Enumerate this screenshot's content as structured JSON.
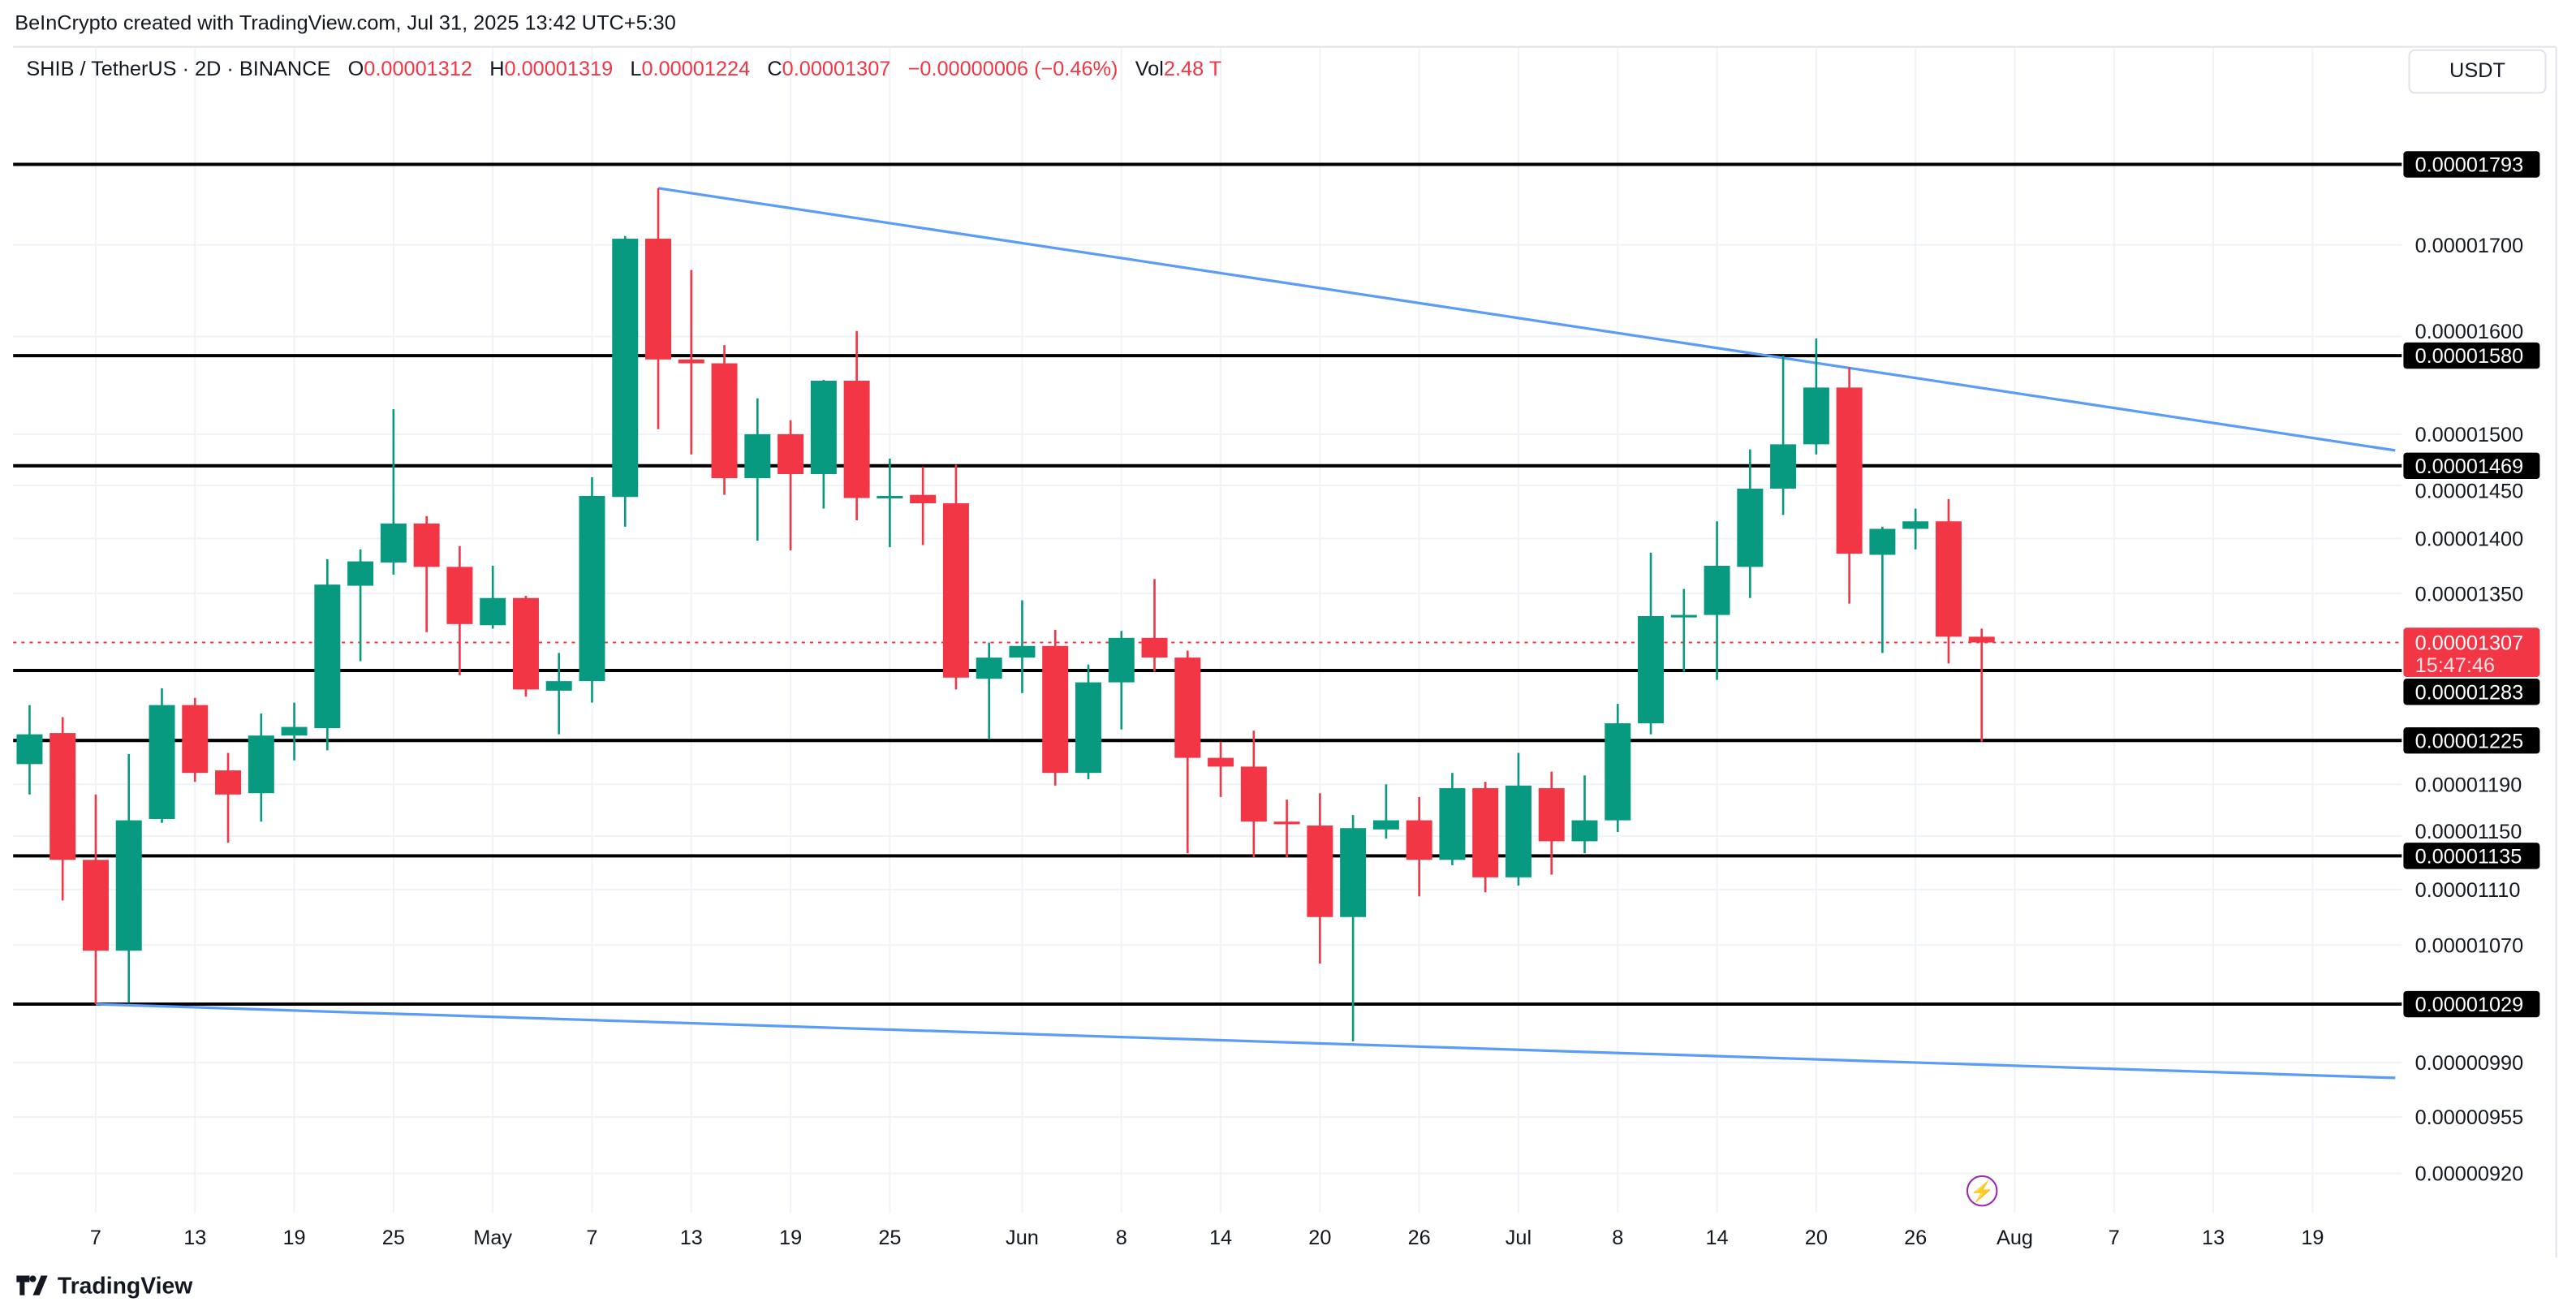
{
  "attribution": "BeInCrypto created with TradingView.com, Jul 31, 2025 13:42 UTC+5:30",
  "legend": {
    "symbol": "SHIB / TetherUS · 2D · BINANCE",
    "o_label": "O",
    "o": "0.00001312",
    "h_label": "H",
    "h": "0.00001319",
    "l_label": "L",
    "l": "0.00001224",
    "c_label": "C",
    "c": "0.00001307",
    "change": "−0.00000006 (−0.46%)",
    "vol_label": "Vol",
    "vol": "2.48 T"
  },
  "currency_button": "USDT",
  "footer_logo": "TradingView",
  "colors": {
    "up": "#089981",
    "down": "#F23645",
    "trendline": "#5B9CF6",
    "level": "#000000",
    "grid": "#f0f3fa",
    "replay_icon": "#9C27B0"
  },
  "icons": {
    "replay": "lightning-bolt-icon",
    "logo": "tradingview-logo-icon"
  },
  "chart_data": {
    "type": "candlestick",
    "interval": "2D",
    "y_scale": "log",
    "ylim": [
      9.05e-06,
      1.85e-05
    ],
    "grid": true,
    "y_ticks": [
      "0.00001700",
      "0.00001600",
      "0.00001500",
      "0.00001450",
      "0.00001400",
      "0.00001350",
      "0.00001190",
      "0.00001150",
      "0.00001110",
      "0.00001070",
      "0.00000990",
      "0.00000955",
      "0.00000920"
    ],
    "x_ticks": [
      {
        "date": "2025-04-07",
        "label": "7"
      },
      {
        "date": "2025-04-13",
        "label": "13"
      },
      {
        "date": "2025-04-19",
        "label": "19"
      },
      {
        "date": "2025-04-25",
        "label": "25"
      },
      {
        "date": "2025-05-01",
        "label": "May"
      },
      {
        "date": "2025-05-07",
        "label": "7"
      },
      {
        "date": "2025-05-13",
        "label": "13"
      },
      {
        "date": "2025-05-19",
        "label": "19"
      },
      {
        "date": "2025-05-25",
        "label": "25"
      },
      {
        "date": "2025-06-02",
        "label": "Jun"
      },
      {
        "date": "2025-06-08",
        "label": "8"
      },
      {
        "date": "2025-06-14",
        "label": "14"
      },
      {
        "date": "2025-06-20",
        "label": "20"
      },
      {
        "date": "2025-06-26",
        "label": "26"
      },
      {
        "date": "2025-07-02",
        "label": "Jul"
      },
      {
        "date": "2025-07-08",
        "label": "8"
      },
      {
        "date": "2025-07-14",
        "label": "14"
      },
      {
        "date": "2025-07-20",
        "label": "20"
      },
      {
        "date": "2025-07-26",
        "label": "26"
      },
      {
        "date": "2025-08-01",
        "label": "Aug"
      },
      {
        "date": "2025-08-07",
        "label": "7"
      },
      {
        "date": "2025-08-13",
        "label": "13"
      },
      {
        "date": "2025-08-19",
        "label": "19"
      }
    ],
    "candles_columns": [
      "date",
      "open",
      "high",
      "low",
      "close"
    ],
    "candles": [
      [
        "2025-04-03",
        1.206e-05,
        1.254e-05,
        1.182e-05,
        1.23e-05
      ],
      [
        "2025-04-05",
        1.231e-05,
        1.244e-05,
        1.102e-05,
        1.132e-05
      ],
      [
        "2025-04-07",
        1.132e-05,
        1.182e-05,
        1.029e-05,
        1.066e-05
      ],
      [
        "2025-04-09",
        1.066e-05,
        1.214e-05,
        1.03e-05,
        1.162e-05
      ],
      [
        "2025-04-11",
        1.163e-05,
        1.268e-05,
        1.16e-05,
        1.254e-05
      ],
      [
        "2025-04-13",
        1.254e-05,
        1.26e-05,
        1.192e-05,
        1.199e-05
      ],
      [
        "2025-04-15",
        1.201e-05,
        1.215e-05,
        1.145e-05,
        1.182e-05
      ],
      [
        "2025-04-17",
        1.183e-05,
        1.247e-05,
        1.161e-05,
        1.229e-05
      ],
      [
        "2025-04-19",
        1.229e-05,
        1.256e-05,
        1.209e-05,
        1.236e-05
      ],
      [
        "2025-04-21",
        1.235e-05,
        1.381e-05,
        1.217e-05,
        1.358e-05
      ],
      [
        "2025-04-23",
        1.357e-05,
        1.39e-05,
        1.291e-05,
        1.379e-05
      ],
      [
        "2025-04-25",
        1.378e-05,
        1.525e-05,
        1.367e-05,
        1.414e-05
      ],
      [
        "2025-04-27",
        1.414e-05,
        1.421e-05,
        1.316e-05,
        1.374e-05
      ],
      [
        "2025-04-29",
        1.374e-05,
        1.393e-05,
        1.279e-05,
        1.323e-05
      ],
      [
        "2025-05-01",
        1.322e-05,
        1.375e-05,
        1.319e-05,
        1.346e-05
      ],
      [
        "2025-05-03",
        1.346e-05,
        1.348e-05,
        1.261e-05,
        1.267e-05
      ],
      [
        "2025-05-05",
        1.266e-05,
        1.298e-05,
        1.23e-05,
        1.274e-05
      ],
      [
        "2025-05-07",
        1.274e-05,
        1.458e-05,
        1.256e-05,
        1.44e-05
      ],
      [
        "2025-05-09",
        1.439e-05,
        1.71e-05,
        1.411e-05,
        1.707e-05
      ],
      [
        "2025-05-11",
        1.707e-05,
        1.765e-05,
        1.505e-05,
        1.576e-05
      ],
      [
        "2025-05-13",
        1.576e-05,
        1.672e-05,
        1.48e-05,
        1.572e-05
      ],
      [
        "2025-05-15",
        1.572e-05,
        1.591e-05,
        1.441e-05,
        1.457e-05
      ],
      [
        "2025-05-17",
        1.457e-05,
        1.536e-05,
        1.398e-05,
        1.5e-05
      ],
      [
        "2025-05-19",
        1.5e-05,
        1.514e-05,
        1.389e-05,
        1.461e-05
      ],
      [
        "2025-05-21",
        1.461e-05,
        1.555e-05,
        1.428e-05,
        1.554e-05
      ],
      [
        "2025-05-23",
        1.554e-05,
        1.606e-05,
        1.417e-05,
        1.438e-05
      ],
      [
        "2025-05-25",
        1.439e-05,
        1.476e-05,
        1.392e-05,
        1.44e-05
      ],
      [
        "2025-05-27",
        1.441e-05,
        1.468e-05,
        1.394e-05,
        1.433e-05
      ],
      [
        "2025-05-29",
        1.433e-05,
        1.47e-05,
        1.267e-05,
        1.277e-05
      ],
      [
        "2025-05-31",
        1.276e-05,
        1.307e-05,
        1.226e-05,
        1.294e-05
      ],
      [
        "2025-06-02",
        1.294e-05,
        1.344e-05,
        1.264e-05,
        1.304e-05
      ],
      [
        "2025-06-04",
        1.304e-05,
        1.318e-05,
        1.189e-05,
        1.199e-05
      ],
      [
        "2025-06-06",
        1.199e-05,
        1.288e-05,
        1.194e-05,
        1.273e-05
      ],
      [
        "2025-06-08",
        1.273e-05,
        1.317e-05,
        1.234e-05,
        1.311e-05
      ],
      [
        "2025-06-10",
        1.311e-05,
        1.363e-05,
        1.282e-05,
        1.294e-05
      ],
      [
        "2025-06-12",
        1.294e-05,
        1.3e-05,
        1.137e-05,
        1.211e-05
      ],
      [
        "2025-06-14",
        1.211e-05,
        1.224e-05,
        1.18e-05,
        1.204e-05
      ],
      [
        "2025-06-16",
        1.204e-05,
        1.233e-05,
        1.134e-05,
        1.161e-05
      ],
      [
        "2025-06-18",
        1.161e-05,
        1.178e-05,
        1.134e-05,
        1.159e-05
      ],
      [
        "2025-06-20",
        1.158e-05,
        1.183e-05,
        1.057e-05,
        1.09e-05
      ],
      [
        "2025-06-22",
        1.09e-05,
        1.166e-05,
        1.004e-05,
        1.156e-05
      ],
      [
        "2025-06-24",
        1.155e-05,
        1.19e-05,
        1.148e-05,
        1.162e-05
      ],
      [
        "2025-06-26",
        1.162e-05,
        1.18e-05,
        1.105e-05,
        1.132e-05
      ],
      [
        "2025-06-28",
        1.132e-05,
        1.199e-05,
        1.128e-05,
        1.187e-05
      ],
      [
        "2025-06-30",
        1.187e-05,
        1.192e-05,
        1.108e-05,
        1.119e-05
      ],
      [
        "2025-07-02",
        1.119e-05,
        1.215e-05,
        1.113e-05,
        1.189e-05
      ],
      [
        "2025-07-04",
        1.187e-05,
        1.2e-05,
        1.121e-05,
        1.146e-05
      ],
      [
        "2025-07-06",
        1.146e-05,
        1.197e-05,
        1.137e-05,
        1.162e-05
      ],
      [
        "2025-07-08",
        1.162e-05,
        1.255e-05,
        1.153e-05,
        1.239e-05
      ],
      [
        "2025-07-10",
        1.239e-05,
        1.387e-05,
        1.23e-05,
        1.33e-05
      ],
      [
        "2025-07-12",
        1.33e-05,
        1.354e-05,
        1.282e-05,
        1.331e-05
      ],
      [
        "2025-07-14",
        1.331e-05,
        1.416e-05,
        1.275e-05,
        1.375e-05
      ],
      [
        "2025-07-16",
        1.374e-05,
        1.485e-05,
        1.346e-05,
        1.447e-05
      ],
      [
        "2025-07-18",
        1.447e-05,
        1.58e-05,
        1.422e-05,
        1.49e-05
      ],
      [
        "2025-07-20",
        1.49e-05,
        1.598e-05,
        1.48e-05,
        1.547e-05
      ],
      [
        "2025-07-22",
        1.547e-05,
        1.568e-05,
        1.341e-05,
        1.386e-05
      ],
      [
        "2025-07-24",
        1.385e-05,
        1.411e-05,
        1.298e-05,
        1.409e-05
      ],
      [
        "2025-07-26",
        1.409e-05,
        1.428e-05,
        1.39e-05,
        1.416e-05
      ],
      [
        "2025-07-28",
        1.416e-05,
        1.437e-05,
        1.289e-05,
        1.312e-05
      ],
      [
        "2025-07-30",
        1.312e-05,
        1.319e-05,
        1.224e-05,
        1.307e-05
      ]
    ],
    "horizontal_levels": [
      "0.00001793",
      "0.00001580",
      "0.00001469",
      "0.00001283",
      "0.00001225",
      "0.00001135",
      "0.00001029"
    ],
    "trendlines": [
      {
        "start": [
          "2025-05-11",
          1.765e-05
        ],
        "end": [
          "2025-08-24",
          1.484e-05
        ]
      },
      {
        "start": [
          "2025-04-07",
          1.029e-05
        ],
        "end": [
          "2025-08-24",
          9.8e-06
        ]
      }
    ],
    "last_price": {
      "value": "0.00001307",
      "countdown": "15:47:46"
    }
  }
}
